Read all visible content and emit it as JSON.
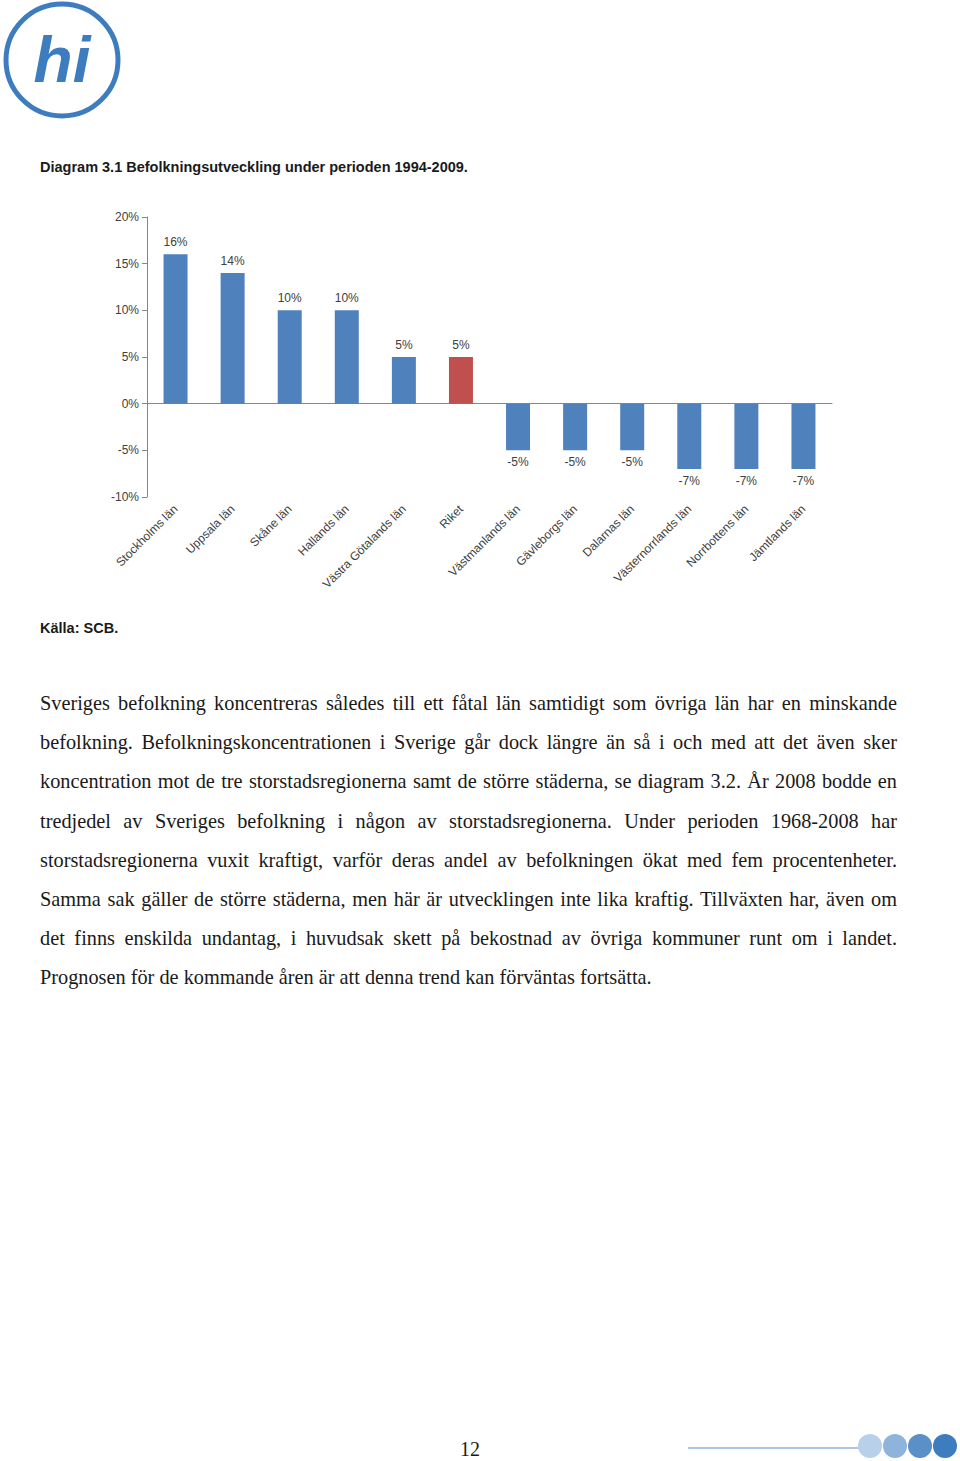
{
  "logo": "hi",
  "chart_data": {
    "type": "bar",
    "title": "Diagram 3.1 Befolkningsutveckling under perioden 1994-2009.",
    "categories": [
      "Stockholms län",
      "Uppsala län",
      "Skåne län",
      "Hallands län",
      "Västra Götalands län",
      "Riket",
      "Västmanlands län",
      "Gävleborgs län",
      "Dalarnas län",
      "Västernorrlands län",
      "Norrbottens län",
      "Jämtlands län"
    ],
    "values": [
      16,
      14,
      10,
      10,
      5,
      5,
      -5,
      -5,
      -5,
      -7,
      -7,
      -7
    ],
    "value_labels": [
      "16%",
      "14%",
      "10%",
      "10%",
      "5%",
      "5%",
      "-5%",
      "-5%",
      "-5%",
      "-7%",
      "-7%",
      "-7%"
    ],
    "colors": [
      "#4f81bd",
      "#4f81bd",
      "#4f81bd",
      "#4f81bd",
      "#4f81bd",
      "#c0504d",
      "#4f81bd",
      "#4f81bd",
      "#4f81bd",
      "#4f81bd",
      "#4f81bd",
      "#4f81bd"
    ],
    "ylim": [
      -10,
      20
    ],
    "yticks": [
      {
        "value": -10,
        "label": "-10%"
      },
      {
        "value": -5,
        "label": "-5%"
      },
      {
        "value": 0,
        "label": "0%"
      },
      {
        "value": 5,
        "label": "5%"
      },
      {
        "value": 10,
        "label": "10%"
      },
      {
        "value": 15,
        "label": "15%"
      },
      {
        "value": 20,
        "label": "20%"
      }
    ],
    "grid": false,
    "data_labels": true
  },
  "source": "Källa: SCB.",
  "body": "Sveriges befolkning koncentreras således till ett fåtal län samtidigt som övriga län har en minskande befolkning. Befolkningskoncentrationen i Sverige går dock längre än så i och med att det även sker koncentration mot de tre storstadsregionerna samt de större städerna, se diagram 3.2. År 2008 bodde en tredjedel av Sveriges befolkning i någon av storstadsregionerna. Under perioden 1968-2008 har storstadsregionerna vuxit kraftigt, varför deras andel av befolkningen ökat med fem procentenheter. Samma sak gäller de större städerna, men här är utvecklingen inte lika kraftig. Tillväxten har, även om det finns enskilda undantag, i huvudsak skett på bekostnad av övriga kommuner runt om i landet. Prognosen för de kommande åren är att denna trend kan förväntas fortsätta.",
  "page_number": 12
}
